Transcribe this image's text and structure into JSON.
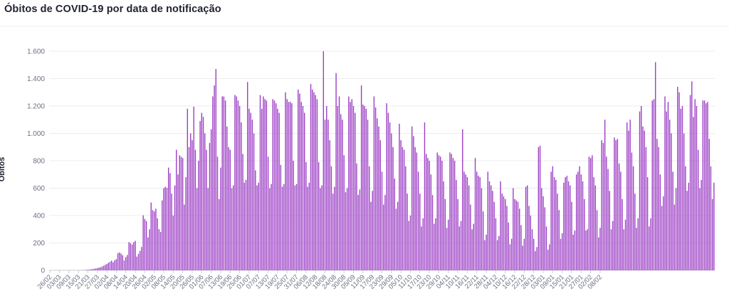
{
  "chart_data": {
    "type": "bar",
    "title": "Óbitos de COVID-19 por data de notificação",
    "ylabel": "Óbitos",
    "xlabel": "",
    "ylim": [
      0,
      1600
    ],
    "yticks": [
      0,
      200,
      400,
      600,
      800,
      1000,
      1200,
      1400,
      1600
    ],
    "ytick_labels": [
      "0",
      "200",
      "400",
      "600",
      "800",
      "1.000",
      "1.200",
      "1.400",
      "1.600"
    ],
    "grid": true,
    "bar_color": "#9b3cc4",
    "x_start": "2020-02-26",
    "tick_every": 6,
    "tick_labels": [
      "26/02",
      "03/03",
      "09/03",
      "15/03",
      "21/03",
      "27/03",
      "02/04",
      "08/04",
      "14/04",
      "20/04",
      "26/04",
      "02/05",
      "08/05",
      "14/05",
      "20/05",
      "26/05",
      "01/06",
      "07/06",
      "13/06",
      "19/06",
      "25/06",
      "01/07",
      "07/07",
      "13/07",
      "19/07",
      "25/07",
      "31/07",
      "06/08",
      "12/08",
      "18/08",
      "24/08",
      "30/08",
      "05/09",
      "11/09",
      "17/09",
      "23/09",
      "29/09",
      "05/10",
      "11/10",
      "17/10",
      "23/10",
      "29/10",
      "04/11",
      "10/11",
      "16/11",
      "22/11",
      "28/11",
      "04/12",
      "10/12",
      "16/12",
      "22/12",
      "28/12",
      "03/01",
      "09/01",
      "15/01",
      "21/01",
      "27/01",
      "02/02",
      "08/02"
    ],
    "values": [
      0,
      0,
      0,
      0,
      0,
      0,
      0,
      0,
      0,
      0,
      0,
      0,
      0,
      0,
      0,
      0,
      0,
      0,
      0,
      0,
      1,
      1,
      2,
      3,
      4,
      5,
      7,
      9,
      10,
      14,
      16,
      19,
      22,
      28,
      33,
      40,
      46,
      55,
      62,
      70,
      58,
      73,
      82,
      125,
      130,
      122,
      110,
      72,
      96,
      112,
      206,
      198,
      188,
      205,
      215,
      100,
      120,
      142,
      170,
      402,
      375,
      360,
      240,
      300,
      495,
      440,
      430,
      450,
      380,
      300,
      280,
      510,
      600,
      610,
      602,
      750,
      710,
      560,
      400,
      620,
      880,
      700,
      840,
      830,
      820,
      480,
      680,
      1180,
      900,
      1000,
      950,
      1195,
      880,
      600,
      800,
      1090,
      1150,
      1120,
      1000,
      880,
      600,
      930,
      1030,
      1270,
      1350,
      1470,
      830,
      520,
      750,
      1270,
      1270,
      1240,
      1050,
      900,
      880,
      600,
      620,
      1280,
      1270,
      1240,
      1200,
      1080,
      850,
      640,
      660,
      1375,
      1180,
      1150,
      1100,
      1000,
      730,
      620,
      640,
      1280,
      1180,
      1270,
      1250,
      1240,
      830,
      600,
      630,
      1250,
      1240,
      1220,
      1180,
      1150,
      770,
      610,
      630,
      1300,
      1250,
      1230,
      1230,
      1220,
      800,
      620,
      630,
      1320,
      1290,
      1230,
      1200,
      1150,
      790,
      610,
      640,
      1360,
      1320,
      1300,
      1280,
      1250,
      790,
      600,
      620,
      1600,
      1100,
      1200,
      1100,
      950,
      760,
      560,
      610,
      1440,
      1200,
      1270,
      1140,
      1100,
      840,
      570,
      600,
      1270,
      1230,
      1250,
      1200,
      1150,
      780,
      550,
      590,
      1350,
      1210,
      1200,
      1180,
      1100,
      760,
      500,
      580,
      1270,
      1190,
      1110,
      1050,
      950,
      720,
      480,
      550,
      1220,
      1150,
      1080,
      1000,
      900,
      670,
      450,
      500,
      1070,
      950,
      900,
      880,
      760,
      560,
      360,
      400,
      1050,
      980,
      900,
      860,
      720,
      560,
      320,
      380,
      1080,
      850,
      820,
      800,
      700,
      550,
      340,
      380,
      860,
      840,
      830,
      800,
      650,
      520,
      310,
      370,
      860,
      850,
      820,
      800,
      660,
      520,
      320,
      360,
      1030,
      720,
      700,
      680,
      620,
      480,
      300,
      340,
      820,
      720,
      690,
      680,
      600,
      430,
      220,
      260,
      720,
      650,
      620,
      580,
      500,
      380,
      220,
      250,
      650,
      560,
      540,
      520,
      470,
      350,
      190,
      230,
      600,
      520,
      510,
      500,
      450,
      330,
      180,
      230,
      610,
      620,
      470,
      400,
      300,
      230,
      140,
      170,
      900,
      910,
      600,
      540,
      460,
      320,
      150,
      190,
      720,
      760,
      680,
      660,
      560,
      440,
      230,
      270,
      640,
      680,
      690,
      650,
      620,
      500,
      260,
      290,
      700,
      720,
      760,
      700,
      650,
      520,
      290,
      300,
      830,
      820,
      840,
      680,
      620,
      440,
      240,
      310,
      950,
      930,
      1100,
      830,
      740,
      580,
      300,
      360,
      970,
      950,
      960,
      780,
      720,
      520,
      300,
      370,
      1080,
      1020,
      1100,
      860,
      760,
      560,
      310,
      380,
      1160,
      1200,
      1050,
      1020,
      900,
      680,
      320,
      380,
      1240,
      1250,
      1520,
      960,
      900,
      700,
      470,
      540,
      1270,
      1160,
      1230,
      1100,
      1000,
      720,
      480,
      600,
      1340,
      1300,
      1180,
      1200,
      1000,
      760,
      580,
      640,
      1280,
      1380,
      1120,
      1250,
      1200,
      880,
      600,
      660,
      1240,
      1240,
      1220,
      1230,
      960,
      760,
      520,
      640
    ]
  }
}
